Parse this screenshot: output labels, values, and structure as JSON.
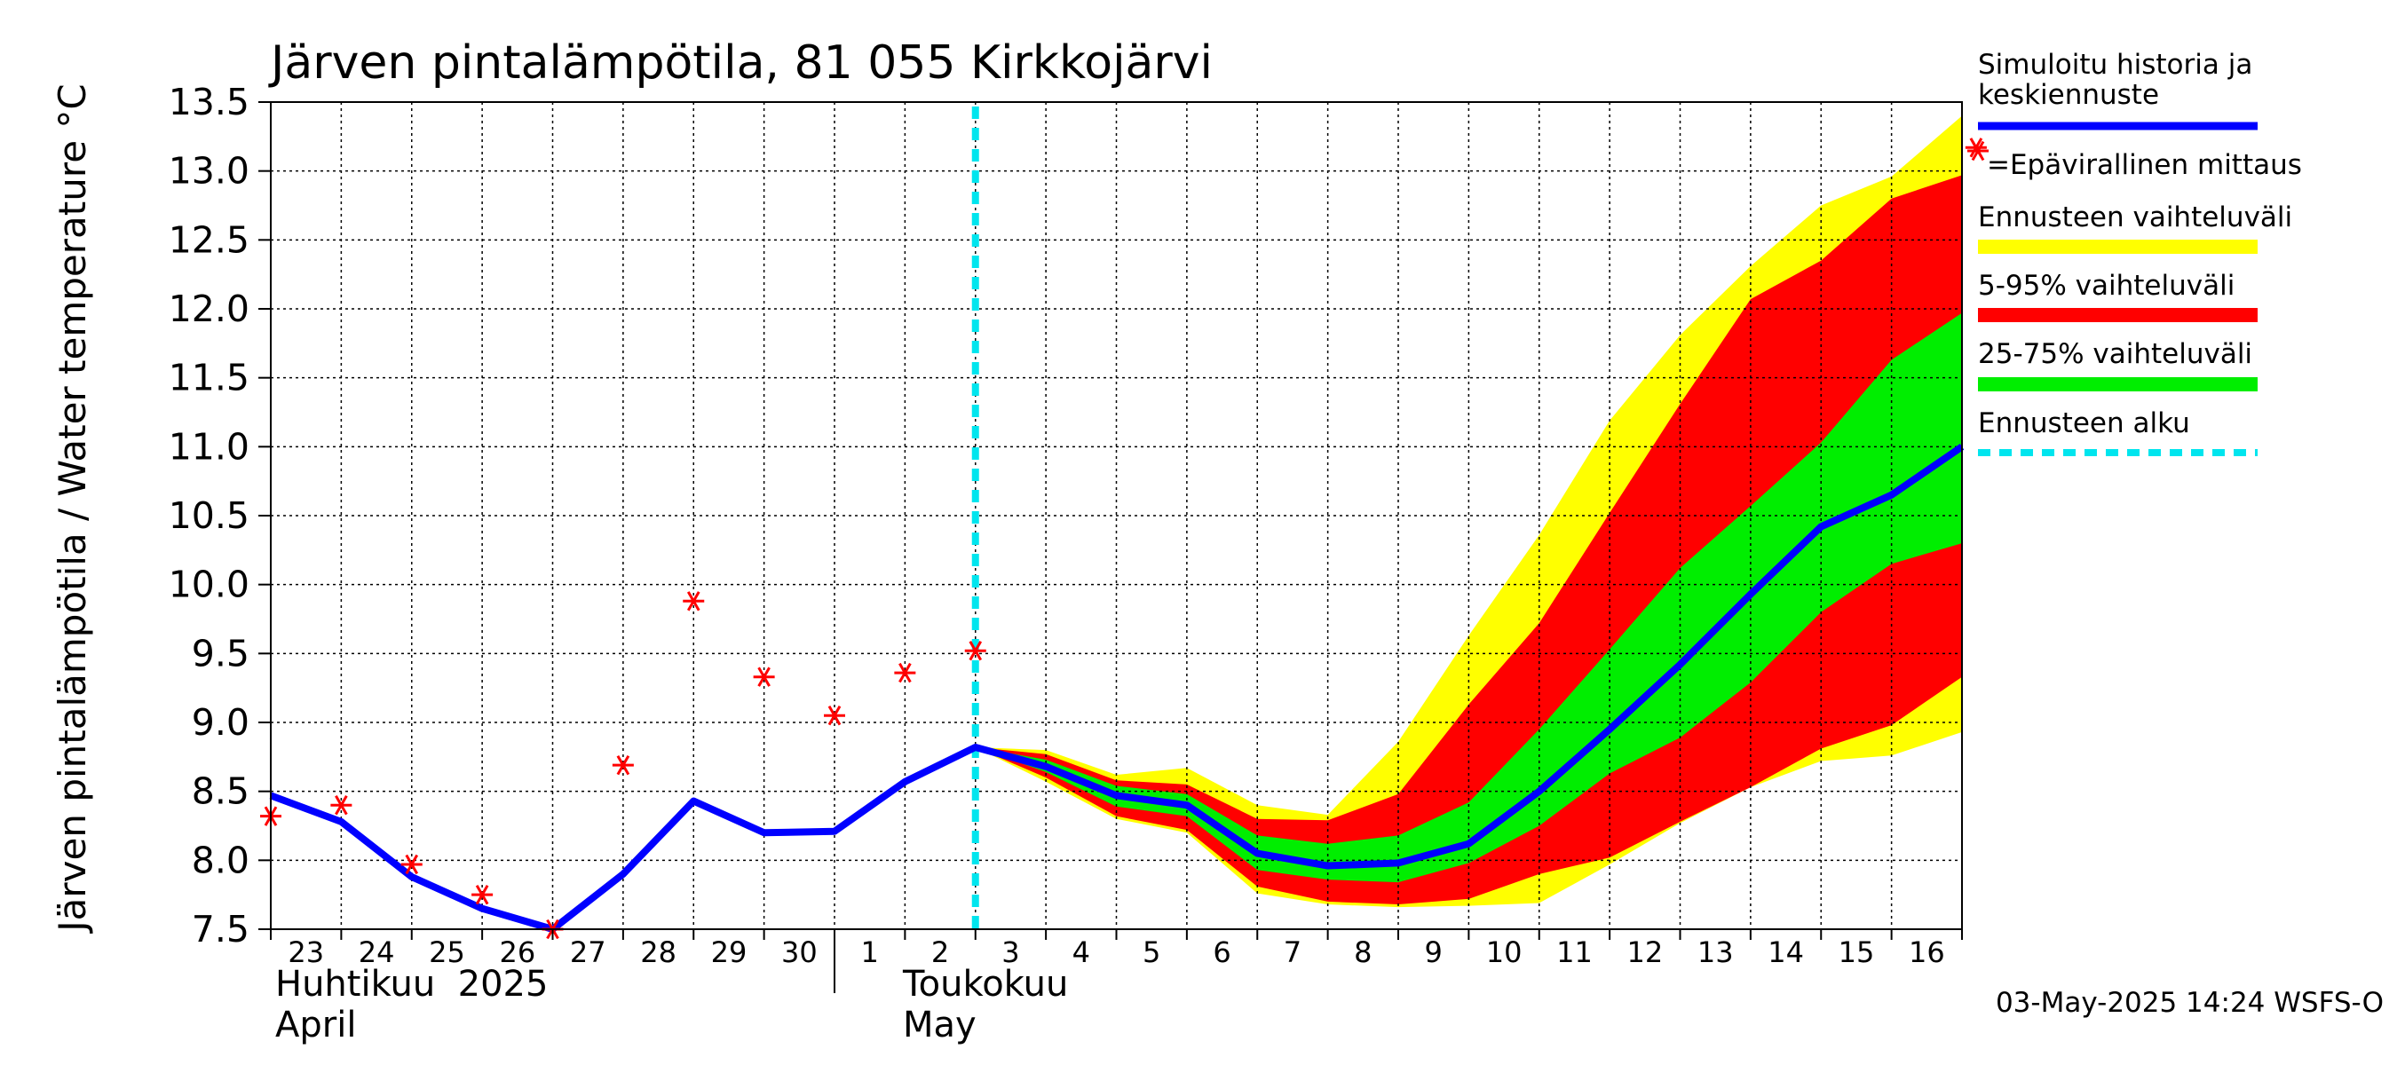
{
  "chart_data": {
    "type": "area",
    "title": "Järven pintalämpötila, 81 055 Kirkkojärvi",
    "ylabel": "Järven pintalämpötila / Water temperature °C",
    "ylim": [
      7.5,
      13.5
    ],
    "yticks": [
      "7.5",
      "8.0",
      "8.5",
      "9.0",
      "9.5",
      "10.0",
      "10.5",
      "11.0",
      "11.5",
      "12.0",
      "12.5",
      "13.0",
      "13.5"
    ],
    "xlim": [
      0,
      24
    ],
    "x_tick_labels": [
      "23",
      "24",
      "25",
      "26",
      "27",
      "28",
      "29",
      "30",
      "1",
      "2",
      "3",
      "4",
      "5",
      "6",
      "7",
      "8",
      "9",
      "10",
      "11",
      "12",
      "13",
      "14",
      "15",
      "16"
    ],
    "months": [
      {
        "line1": "Huhtikuu  2025",
        "line2": "April",
        "start_day": 0
      },
      {
        "line1": "Toukokuu",
        "line2": "May",
        "start_day": 8
      }
    ],
    "forecast_start": 10,
    "simulated": {
      "x": [
        0,
        1,
        2,
        3,
        4,
        5,
        6,
        7,
        8,
        9,
        10,
        11,
        12,
        13,
        14,
        15,
        16,
        17,
        18,
        19,
        20,
        21,
        22,
        23,
        24
      ],
      "y": [
        8.47,
        8.28,
        7.88,
        7.65,
        7.5,
        7.9,
        8.43,
        8.2,
        8.21,
        8.57,
        8.82,
        8.68,
        8.47,
        8.4,
        8.05,
        7.96,
        7.98,
        8.12,
        8.5,
        8.95,
        9.42,
        9.93,
        10.42,
        10.65,
        11.0
      ]
    },
    "observations": {
      "x": [
        0,
        1,
        2,
        3,
        4,
        5,
        6,
        7,
        8,
        9,
        10,
        24.2
      ],
      "y": [
        8.32,
        8.4,
        7.97,
        7.75,
        7.5,
        8.69,
        9.88,
        9.33,
        9.05,
        9.36,
        9.52,
        13.17
      ]
    },
    "bands": {
      "x": [
        10,
        11,
        12,
        13,
        14,
        15,
        16,
        17,
        18,
        19,
        20,
        21,
        22,
        23,
        24
      ],
      "full_range": {
        "low": [
          8.82,
          8.57,
          8.3,
          8.2,
          7.76,
          7.68,
          7.66,
          7.67,
          7.69,
          7.97,
          8.27,
          8.53,
          8.72,
          8.76,
          8.93
        ],
        "high": [
          8.82,
          8.8,
          8.62,
          8.67,
          8.4,
          8.33,
          8.86,
          9.63,
          10.36,
          11.19,
          11.81,
          12.31,
          12.75,
          12.96,
          13.4
        ]
      },
      "p5_95": {
        "low": [
          8.82,
          8.6,
          8.32,
          8.22,
          7.81,
          7.7,
          7.68,
          7.72,
          7.9,
          8.02,
          8.28,
          8.53,
          8.81,
          8.98,
          9.33
        ],
        "high": [
          8.82,
          8.77,
          8.58,
          8.55,
          8.3,
          8.29,
          8.48,
          9.13,
          9.72,
          10.52,
          11.31,
          12.07,
          12.35,
          12.8,
          12.97
        ]
      },
      "p25_75": {
        "low": [
          8.82,
          8.64,
          8.39,
          8.32,
          7.93,
          7.86,
          7.84,
          7.98,
          8.25,
          8.63,
          8.89,
          9.29,
          9.8,
          10.15,
          10.3
        ],
        "high": [
          8.82,
          8.73,
          8.54,
          8.48,
          8.18,
          8.12,
          8.18,
          8.42,
          8.95,
          9.53,
          10.12,
          10.57,
          11.03,
          11.63,
          11.97
        ]
      }
    },
    "colors": {
      "simulated": "#0000ff",
      "observation": "#ff0000",
      "full_range": "#ffff00",
      "p5_95": "#ff0000",
      "p25_75": "#00ee00",
      "forecast_start": "#00e5ee",
      "grid": "#000000"
    },
    "legend": [
      {
        "label": "Simuloitu historia ja keskiennuste",
        "lines": [
          "Simuloitu historia ja",
          "keskiennuste"
        ],
        "swatch": "simulated"
      },
      {
        "label": "=Epävirallinen mittaus",
        "lines": [
          "=Epävirallinen mittaus"
        ],
        "swatch": "observation"
      },
      {
        "label": "Ennusteen vaihteluväli",
        "lines": [
          "Ennusteen vaihteluväli"
        ],
        "swatch": "full_range"
      },
      {
        "label": "5-95% vaihteluväli",
        "lines": [
          "5-95% vaihteluväli"
        ],
        "swatch": "p5_95"
      },
      {
        "label": "25-75% vaihteluväli",
        "lines": [
          "25-75% vaihteluväli"
        ],
        "swatch": "p25_75"
      },
      {
        "label": "Ennusteen alku",
        "lines": [
          "Ennusteen alku"
        ],
        "swatch": "forecast_start"
      }
    ],
    "legend_position": "right",
    "grid": true
  },
  "timestamp": "03-May-2025 14:24 WSFS-O"
}
